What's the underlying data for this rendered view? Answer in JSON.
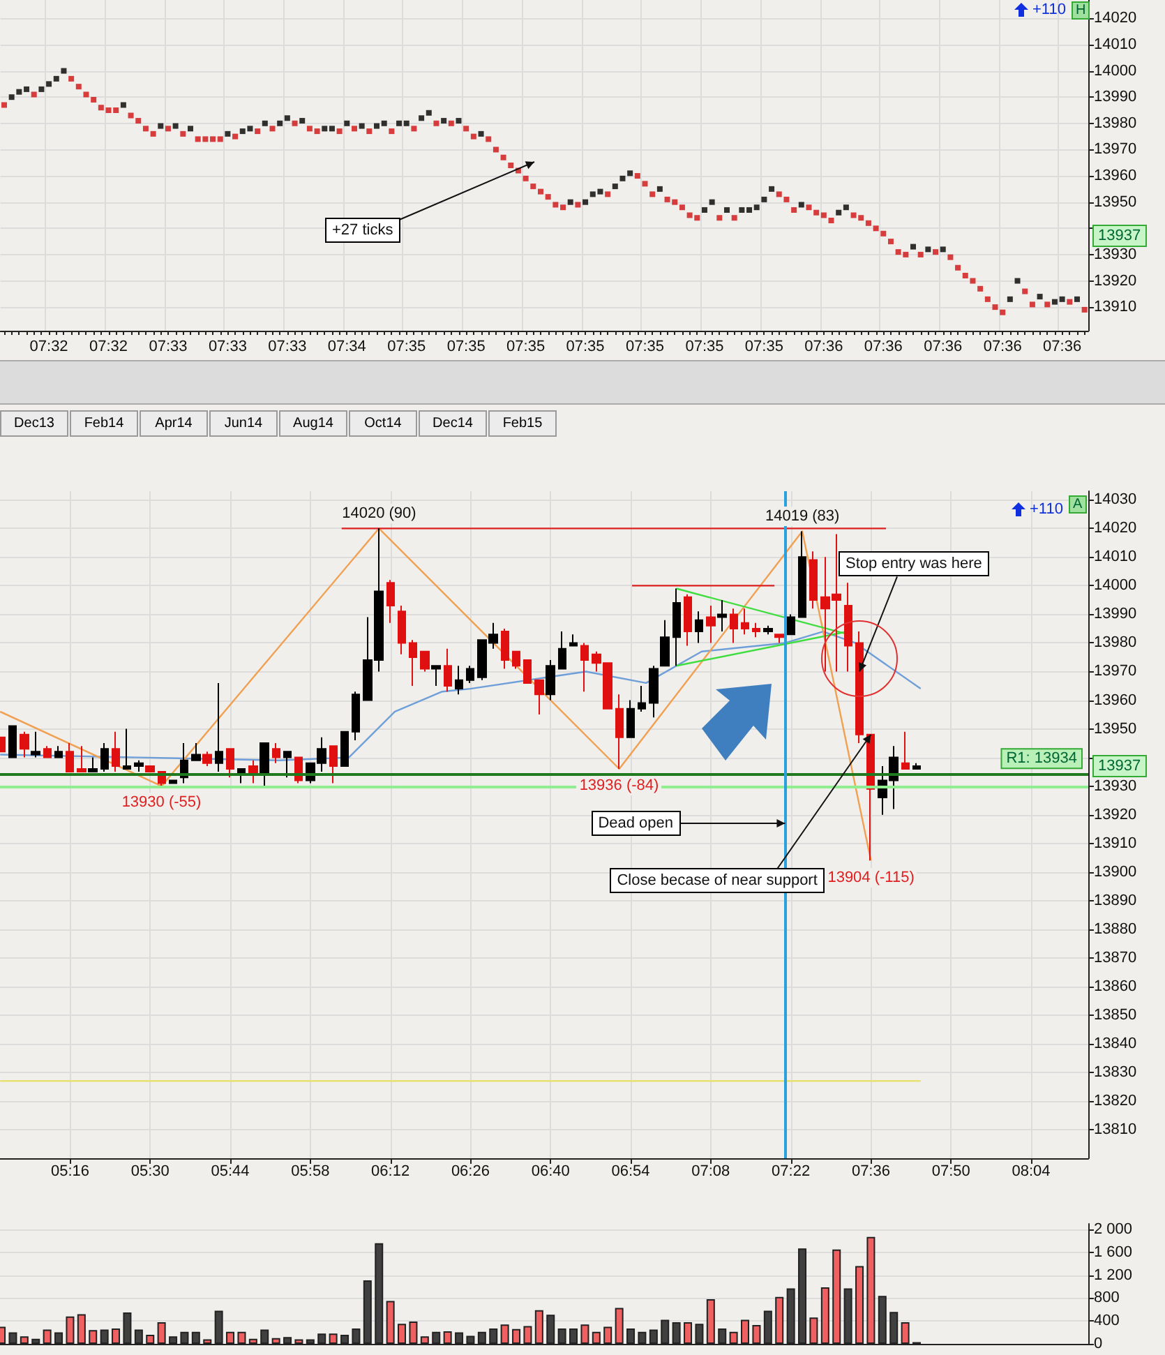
{
  "chart_data": [
    {
      "type": "scatter",
      "marker": "square",
      "grid": true,
      "categories": [
        null,
        null,
        null,
        null,
        null,
        null,
        "07:32",
        null,
        null,
        null,
        null,
        null,
        null,
        null,
        "07:32",
        null,
        null,
        null,
        null,
        null,
        null,
        null,
        "07:33",
        null,
        null,
        null,
        null,
        null,
        null,
        null,
        "07:33",
        null,
        null,
        null,
        null,
        null,
        null,
        null,
        "07:33",
        null,
        null,
        null,
        null,
        null,
        null,
        null,
        "07:34",
        null,
        null,
        null,
        null,
        null,
        null,
        null,
        "07:35",
        null,
        null,
        null,
        null,
        null,
        null,
        null,
        "07:35",
        null,
        null,
        null,
        null,
        null,
        null,
        null,
        "07:35",
        null,
        null,
        null,
        null,
        null,
        null,
        null,
        "07:35",
        null,
        null,
        null,
        null,
        null,
        null,
        null,
        "07:35",
        null,
        null,
        null,
        null,
        null,
        null,
        null,
        "07:35",
        null,
        null,
        null,
        null,
        null,
        null,
        null,
        "07:35",
        null,
        null,
        null,
        null,
        null,
        null,
        null,
        "07:36",
        null,
        null,
        null,
        null,
        null,
        null,
        null,
        "07:36",
        null,
        null,
        null,
        null,
        null,
        null,
        null,
        "07:36",
        null,
        null,
        null,
        null,
        null,
        null,
        null,
        "07:36",
        null,
        null,
        null,
        null,
        null,
        null,
        null,
        "07:36",
        null,
        null,
        null
      ],
      "values": [
        13987,
        13990,
        13992,
        13993,
        13991,
        13993,
        13995,
        13997,
        14000,
        13997,
        13994,
        13991,
        13989,
        13986,
        13985,
        13985,
        13987,
        13983,
        13981,
        13978,
        13976,
        13979,
        13978,
        13979,
        13976,
        13978,
        13974,
        13974,
        13974,
        13974,
        13976,
        13975,
        13977,
        13978,
        13977,
        13980,
        13978,
        13980,
        13982,
        13980,
        13981,
        13978,
        13977,
        13978,
        13978,
        13977,
        13980,
        13978,
        13979,
        13977,
        13979,
        13980,
        13977,
        13980,
        13980,
        13978,
        13982,
        13984,
        13980,
        13981,
        13980,
        13981,
        13978,
        13975,
        13976,
        13974,
        13970,
        13967,
        13964,
        13962,
        13959,
        13956,
        13954,
        13952,
        13949,
        13948,
        13950,
        13949,
        13950,
        13953,
        13954,
        13953,
        13956,
        13959,
        13961,
        13960,
        13957,
        13953,
        13955,
        13951,
        13950,
        13948,
        13945,
        13944,
        13947,
        13950,
        13944,
        13947,
        13944,
        13947,
        13947,
        13948,
        13951,
        13955,
        13953,
        13951,
        13947,
        13949,
        13948,
        13946,
        13945,
        13943,
        13946,
        13948,
        13945,
        13944,
        13942,
        13940,
        13938,
        13935,
        13931,
        13930,
        13933,
        13930,
        13932,
        13931,
        13932,
        13929,
        13925,
        13922,
        13920,
        13917,
        13913,
        13910,
        13908,
        13913,
        13920,
        13916,
        13911,
        13914,
        13911,
        13912,
        13913,
        13912,
        13913,
        13909
      ],
      "colors": [
        "#d01010",
        "#000000",
        "#000000",
        "#000000",
        "#d01010",
        "#000000",
        "#000000",
        "#000000",
        "#000000",
        "#d01010",
        "#d01010",
        "#d01010",
        "#d01010",
        "#d01010",
        "#d01010",
        "#d01010",
        "#000000",
        "#d01010",
        "#d01010",
        "#d01010",
        "#d01010",
        "#000000",
        "#d01010",
        "#000000",
        "#d01010",
        "#000000",
        "#d01010",
        "#d01010",
        "#d01010",
        "#d01010",
        "#000000",
        "#d01010",
        "#000000",
        "#000000",
        "#d01010",
        "#000000",
        "#d01010",
        "#000000",
        "#000000",
        "#d01010",
        "#000000",
        "#d01010",
        "#d01010",
        "#000000",
        "#000000",
        "#d01010",
        "#000000",
        "#d01010",
        "#000000",
        "#d01010",
        "#000000",
        "#000000",
        "#d01010",
        "#000000",
        "#000000",
        "#d01010",
        "#000000",
        "#000000",
        "#d01010",
        "#000000",
        "#d01010",
        "#000000",
        "#d01010",
        "#d01010",
        "#000000",
        "#d01010",
        "#d01010",
        "#d01010",
        "#d01010",
        "#d01010",
        "#d01010",
        "#d01010",
        "#d01010",
        "#d01010",
        "#d01010",
        "#d01010",
        "#000000",
        "#d01010",
        "#000000",
        "#000000",
        "#000000",
        "#d01010",
        "#000000",
        "#000000",
        "#000000",
        "#d01010",
        "#d01010",
        "#d01010",
        "#000000",
        "#d01010",
        "#d01010",
        "#d01010",
        "#d01010",
        "#d01010",
        "#000000",
        "#000000",
        "#d01010",
        "#000000",
        "#d01010",
        "#000000",
        "#000000",
        "#000000",
        "#000000",
        "#000000",
        "#d01010",
        "#d01010",
        "#d01010",
        "#000000",
        "#d01010",
        "#d01010",
        "#d01010",
        "#d01010",
        "#000000",
        "#000000",
        "#d01010",
        "#d01010",
        "#d01010",
        "#d01010",
        "#d01010",
        "#d01010",
        "#d01010",
        "#d01010",
        "#000000",
        "#d01010",
        "#000000",
        "#d01010",
        "#000000",
        "#d01010",
        "#d01010",
        "#d01010",
        "#d01010",
        "#d01010",
        "#d01010",
        "#d01010",
        "#d01010",
        "#000000",
        "#000000",
        "#d01010",
        "#d01010",
        "#000000",
        "#d01010",
        "#000000",
        "#000000",
        "#d01010",
        "#000000",
        "#d01010"
      ],
      "ylim": [
        13901,
        14027
      ],
      "yticks": [
        13910,
        13920,
        13930,
        {
          "value": 13940,
          "label": null
        },
        13950,
        13960,
        13970,
        13980,
        13990,
        14000,
        14010,
        14020
      ],
      "annotations": [
        "+27 ticks",
        "+110",
        "H",
        {
          "text": "13937",
          "y": 13937
        }
      ]
    },
    {
      "type": "candlestick",
      "grid": true,
      "x": [
        5.0667,
        5.1,
        5.1333,
        5.1667,
        5.2,
        5.2333,
        5.2667,
        5.3,
        5.3333,
        5.3667,
        5.4,
        5.4333,
        5.4667,
        5.5,
        5.5333,
        5.5667,
        5.6,
        5.6333,
        5.6667,
        5.7,
        5.7333,
        5.7667,
        5.8,
        5.8333,
        5.8667,
        5.9,
        5.9333,
        5.9667,
        6,
        6.0333,
        6.0667,
        6.1,
        6.1333,
        6.1667,
        6.2,
        6.2333,
        6.2667,
        6.3,
        6.3333,
        6.3667,
        6.4,
        6.4333,
        6.4667,
        6.5,
        6.5333,
        6.5667,
        6.6,
        6.6333,
        6.6667,
        6.7,
        6.7333,
        6.7667,
        6.8,
        6.8333,
        6.8667,
        6.9,
        6.9333,
        6.9667,
        7,
        7.0333,
        7.0667,
        7.1,
        7.1333,
        7.1667,
        7.2,
        7.2333,
        7.2667,
        7.3,
        7.3333,
        7.3667,
        7.4,
        7.4333,
        7.4667,
        7.5,
        7.5333,
        7.5667,
        7.6,
        7.6333,
        7.6667,
        7.7,
        7.7333
      ],
      "ohlc": [
        [
          13947,
          13947,
          13942,
          13942
        ],
        [
          13940,
          13951,
          13940,
          13951
        ],
        [
          13948,
          13949,
          13940,
          13943
        ],
        [
          13941,
          13949,
          13940,
          13942
        ],
        [
          13943,
          13944,
          13940,
          13940
        ],
        [
          13940,
          13944,
          13940,
          13942
        ],
        [
          13942,
          13945,
          13935,
          13935
        ],
        [
          13936,
          13944,
          13935,
          13935
        ],
        [
          13935,
          13940,
          13935,
          13936
        ],
        [
          13936,
          13945,
          13935,
          13943
        ],
        [
          13943,
          13949,
          13935,
          13937
        ],
        [
          13936,
          13950,
          13936,
          13937
        ],
        [
          13937,
          13939,
          13935,
          13938
        ],
        [
          13937,
          13937,
          13935,
          13935
        ],
        [
          13935,
          13935,
          13930,
          13931
        ],
        [
          13931,
          13932,
          13931,
          13932
        ],
        [
          13933,
          13945,
          13931,
          13939
        ],
        [
          13939,
          13945,
          13939,
          13941
        ],
        [
          13941,
          13942,
          13937,
          13938
        ],
        [
          13938,
          13966,
          13935,
          13942
        ],
        [
          13943,
          13943,
          13933,
          13936
        ],
        [
          13934,
          13936,
          13931,
          13936
        ],
        [
          13937,
          13939,
          13931,
          13934
        ],
        [
          13934,
          13945,
          13930,
          13945
        ],
        [
          13943,
          13945,
          13938,
          13940
        ],
        [
          13940,
          13942,
          13933,
          13942
        ],
        [
          13940,
          13940,
          13931,
          13932
        ],
        [
          13932,
          13938,
          13931,
          13938
        ],
        [
          13938,
          13947,
          13935,
          13943
        ],
        [
          13944,
          13944,
          13931,
          13937
        ],
        [
          13937,
          13949,
          13937,
          13949
        ],
        [
          13949,
          13963,
          13946,
          13962
        ],
        [
          13960,
          13989,
          13960,
          13974
        ],
        [
          13974,
          14020,
          13970,
          13998
        ],
        [
          14001,
          14002,
          13987,
          13993
        ],
        [
          13991,
          13993,
          13976,
          13980
        ],
        [
          13980,
          13981,
          13965,
          13975
        ],
        [
          13977,
          13977,
          13970,
          13971
        ],
        [
          13971,
          13972,
          13965,
          13972
        ],
        [
          13972,
          13978,
          13963,
          13965
        ],
        [
          13964,
          13972,
          13962,
          13967
        ],
        [
          13967,
          13972,
          13966,
          13971
        ],
        [
          13968,
          13981,
          13967,
          13981
        ],
        [
          13980,
          13987,
          13978,
          13983
        ],
        [
          13984,
          13985,
          13971,
          13974
        ],
        [
          13977,
          13977,
          13971,
          13972
        ],
        [
          13974,
          13974,
          13966,
          13966
        ],
        [
          13967,
          13967,
          13955,
          13962
        ],
        [
          13962,
          13974,
          13960,
          13972
        ],
        [
          13971,
          13984,
          13971,
          13978
        ],
        [
          13979,
          13983,
          13979,
          13980
        ],
        [
          13979,
          13980,
          13963,
          13974
        ],
        [
          13976,
          13977,
          13970,
          13973
        ],
        [
          13973,
          13973,
          13957,
          13957
        ],
        [
          13957,
          13962,
          13936,
          13947
        ],
        [
          13947,
          13960,
          13947,
          13957
        ],
        [
          13957,
          13965,
          13956,
          13959
        ],
        [
          13959,
          13972,
          13954,
          13971
        ],
        [
          13972,
          13988,
          13972,
          13982
        ],
        [
          13982,
          13999,
          13972,
          13994
        ],
        [
          13996,
          13997,
          13979,
          13984
        ],
        [
          13984,
          13991,
          13980,
          13988
        ],
        [
          13989,
          13993,
          13980,
          13986
        ],
        [
          13989,
          13995,
          13984,
          13990
        ],
        [
          13990,
          13992,
          13980,
          13985
        ],
        [
          13987,
          13992,
          13983,
          13985
        ],
        [
          13985,
          13987,
          13982,
          13984
        ],
        [
          13984,
          13986,
          13983,
          13985
        ],
        [
          13983,
          13983,
          13980,
          13982
        ],
        [
          13983,
          13990,
          13983,
          13989
        ],
        [
          13989,
          14019,
          13989,
          14010
        ],
        [
          14009,
          14012,
          13992,
          13995
        ],
        [
          13996,
          14010,
          13970,
          13992
        ],
        [
          13997,
          14018,
          13970,
          13995
        ],
        [
          13993,
          14001,
          13970,
          13979
        ],
        [
          13980,
          13984,
          13945,
          13948
        ],
        [
          13948,
          13948,
          13904,
          13929
        ],
        [
          13926,
          13937,
          13920,
          13932
        ],
        [
          13932,
          13944,
          13922,
          13940
        ],
        [
          13938,
          13949,
          13936,
          13936
        ],
        [
          13936,
          13938,
          13936,
          13937
        ]
      ],
      "colors": [
        "#e01010",
        "#000000",
        "#e01010",
        "#000000",
        "#e01010",
        "#000000",
        "#e01010",
        "#e01010",
        "#000000",
        "#000000",
        "#e01010",
        "#000000",
        "#000000",
        "#e01010",
        "#e01010",
        "#000000",
        "#000000",
        "#000000",
        "#e01010",
        "#000000",
        "#e01010",
        "#000000",
        "#e01010",
        "#000000",
        "#e01010",
        "#000000",
        "#e01010",
        "#000000",
        "#000000",
        "#e01010",
        "#000000",
        "#000000",
        "#000000",
        "#000000",
        "#e01010",
        "#e01010",
        "#e01010",
        "#e01010",
        "#000000",
        "#e01010",
        "#000000",
        "#000000",
        "#000000",
        "#000000",
        "#e01010",
        "#e01010",
        "#e01010",
        "#e01010",
        "#000000",
        "#000000",
        "#000000",
        "#e01010",
        "#e01010",
        "#e01010",
        "#e01010",
        "#000000",
        "#000000",
        "#000000",
        "#000000",
        "#000000",
        "#e01010",
        "#000000",
        "#e01010",
        "#000000",
        "#e01010",
        "#e01010",
        "#e01010",
        "#000000",
        "#e01010",
        "#000000",
        "#000000",
        "#e01010",
        "#e01010",
        "#e01010",
        "#e01010",
        "#e01010",
        "#e01010",
        "#000000",
        "#000000",
        "#e01010",
        "#000000"
      ],
      "series": [
        {
          "type": "line",
          "color": "#6f9fd8",
          "x": [
            5.063,
            5.469,
            5.876,
            6.079,
            6.213,
            6.351,
            6.433,
            6.77,
            6.945,
            7.107,
            7.351,
            7.461,
            7.554,
            7.745
          ],
          "values": [
            13941,
            13940,
            13939,
            13940,
            13956,
            13963,
            13964,
            13970,
            13966,
            13977,
            13980,
            13984,
            13980,
            13964
          ]
        },
        {
          "type": "line",
          "color": "#f0a050",
          "x": [
            5.063,
            5.5333,
            6.1667,
            6.8667,
            7.4,
            7.6
          ],
          "values": [
            13956,
            13930,
            14020,
            13936,
            14019,
            13904
          ]
        },
        {
          "type": "line",
          "color": "#40dd40",
          "x": [
            7.0333,
            7.5333
          ],
          "values": [
            13999,
            13983
          ]
        },
        {
          "type": "line",
          "color": "#40dd40",
          "x": [
            7.0333,
            7.5333
          ],
          "values": [
            13972,
            13984
          ]
        },
        {
          "type": "line",
          "color": "#dd2020",
          "x": [
            6.058,
            7.644
          ],
          "values": [
            14020,
            14020
          ]
        },
        {
          "type": "line",
          "color": "#dd2020",
          "x": [
            6.904,
            7.319
          ],
          "values": [
            14000,
            14000
          ]
        },
        {
          "type": "line",
          "color": "#e8e070",
          "x": [
            5.063,
            7.745
          ],
          "values": [
            13827,
            13827
          ]
        }
      ],
      "ref_lines": [
        {
          "axis": "y",
          "value": 13934,
          "label": "R1: 13934",
          "color": "#1f7a1f"
        },
        {
          "axis": "y",
          "value": 13930,
          "color": "#90ee90"
        },
        {
          "axis": "x",
          "value": 7.35,
          "color": "#2aa0dc"
        }
      ],
      "xlim": [
        5.0625,
        8.2333
      ],
      "xticks": [
        {
          "value": 5.2667,
          "label": "05:16"
        },
        {
          "value": 5.5,
          "label": "05:30"
        },
        {
          "value": 5.7333,
          "label": "05:44"
        },
        {
          "value": 5.9667,
          "label": "05:58"
        },
        {
          "value": 6.2,
          "label": "06:12"
        },
        {
          "value": 6.4333,
          "label": "06:26"
        },
        {
          "value": 6.6667,
          "label": "06:40"
        },
        {
          "value": 6.9,
          "label": "06:54"
        },
        {
          "value": 7.1333,
          "label": "07:08"
        },
        {
          "value": 7.3667,
          "label": "07:22"
        },
        {
          "value": 7.6,
          "label": "07:36"
        },
        {
          "value": 7.8333,
          "label": "07:50"
        },
        {
          "value": 8.0667,
          "label": "08:04"
        }
      ],
      "ylim": [
        13800,
        14033
      ],
      "yticks": [
        13810,
        13820,
        13830,
        13840,
        13850,
        13860,
        13870,
        13880,
        13890,
        13900,
        13910,
        13920,
        13930,
        {
          "value": 13940,
          "label": null
        },
        13950,
        13960,
        13970,
        13980,
        13990,
        14000,
        14010,
        14020,
        14030
      ],
      "annotations": [
        {
          "text": "14020 (90)",
          "x": 6.1667,
          "y": 14020
        },
        {
          "text": "14019 (83)",
          "x": 7.4,
          "y": 14019
        },
        {
          "text": "13930 (-55)",
          "x": 5.5333,
          "y": 13930
        },
        {
          "text": "13936 (-84)",
          "x": 6.8667,
          "y": 13936
        },
        {
          "text": "13904 (-115)",
          "x": 7.6,
          "y": 13904
        },
        {
          "text": "Stop entry was here",
          "x": 7.5667,
          "y": 13970
        },
        {
          "text": "Dead open",
          "x": 7.35,
          "y": 13917
        },
        {
          "text": "Close becase of near support",
          "x": 7.6,
          "y": 13948
        },
        "+110",
        "A",
        {
          "text": "13937",
          "y": 13937
        },
        "Dec13",
        "Feb14",
        "Apr14",
        "Jun14",
        "Aug14",
        "Oct14",
        "Dec14",
        "Feb15"
      ]
    },
    {
      "type": "bar",
      "grid": "y",
      "tick_labels": "y",
      "x": [
        5.0667,
        5.1,
        5.1333,
        5.1667,
        5.2,
        5.2333,
        5.2667,
        5.3,
        5.3333,
        5.3667,
        5.4,
        5.4333,
        5.4667,
        5.5,
        5.5333,
        5.5667,
        5.6,
        5.6333,
        5.6667,
        5.7,
        5.7333,
        5.7667,
        5.8,
        5.8333,
        5.8667,
        5.9,
        5.9333,
        5.9667,
        6,
        6.0333,
        6.0667,
        6.1,
        6.1333,
        6.1667,
        6.2,
        6.2333,
        6.2667,
        6.3,
        6.3333,
        6.3667,
        6.4,
        6.4333,
        6.4667,
        6.5,
        6.5333,
        6.5667,
        6.6,
        6.6333,
        6.6667,
        6.7,
        6.7333,
        6.7667,
        6.8,
        6.8333,
        6.8667,
        6.9,
        6.9333,
        6.9667,
        7,
        7.0333,
        7.0667,
        7.1,
        7.1333,
        7.1667,
        7.2,
        7.2333,
        7.2667,
        7.3,
        7.3333,
        7.3667,
        7.4,
        7.4333,
        7.4667,
        7.5,
        7.5333,
        7.5667,
        7.6,
        7.6333,
        7.6667,
        7.7,
        7.7333
      ],
      "values": [
        300,
        200,
        130,
        90,
        250,
        200,
        480,
        520,
        240,
        250,
        270,
        550,
        250,
        160,
        380,
        130,
        210,
        210,
        80,
        580,
        210,
        210,
        90,
        250,
        100,
        120,
        80,
        80,
        180,
        180,
        160,
        270,
        1110,
        1760,
        750,
        350,
        390,
        130,
        210,
        220,
        200,
        140,
        210,
        270,
        340,
        260,
        310,
        590,
        510,
        270,
        270,
        340,
        210,
        300,
        630,
        270,
        210,
        250,
        420,
        380,
        380,
        350,
        780,
        270,
        210,
        420,
        330,
        580,
        820,
        970,
        1670,
        460,
        990,
        1650,
        970,
        1360,
        1870,
        840,
        560,
        380,
        30
      ],
      "colors": [
        "#f06060",
        "#404040",
        "#f06060",
        "#404040",
        "#f06060",
        "#404040",
        "#f06060",
        "#f06060",
        "#f06060",
        "#404040",
        "#f06060",
        "#404040",
        "#404040",
        "#f06060",
        "#f06060",
        "#404040",
        "#404040",
        "#404040",
        "#f06060",
        "#404040",
        "#f06060",
        "#f06060",
        "#f06060",
        "#404040",
        "#f06060",
        "#404040",
        "#f06060",
        "#404040",
        "#404040",
        "#f06060",
        "#404040",
        "#404040",
        "#404040",
        "#404040",
        "#f06060",
        "#f06060",
        "#f06060",
        "#f06060",
        "#404040",
        "#f06060",
        "#404040",
        "#404040",
        "#404040",
        "#404040",
        "#f06060",
        "#f06060",
        "#f06060",
        "#f06060",
        "#404040",
        "#404040",
        "#404040",
        "#f06060",
        "#f06060",
        "#f06060",
        "#f06060",
        "#404040",
        "#404040",
        "#404040",
        "#404040",
        "#404040",
        "#f06060",
        "#404040",
        "#f06060",
        "#404040",
        "#f06060",
        "#f06060",
        "#f06060",
        "#404040",
        "#f06060",
        "#404040",
        "#404040",
        "#f06060",
        "#f06060",
        "#f06060",
        "#404040",
        "#f06060",
        "#f06060",
        "#404040",
        "#404040",
        "#f06060",
        "#404040"
      ],
      "xlim": [
        5.0625,
        8.2333
      ],
      "ylim": [
        0,
        2100
      ],
      "yticks": [
        {
          "value": 0,
          "label": "0"
        },
        {
          "value": 400,
          "label": "400"
        },
        {
          "value": 800,
          "label": "800"
        },
        {
          "value": 1200,
          "label": "1 200"
        },
        {
          "value": 1600,
          "label": "1 600"
        },
        {
          "value": 2000,
          "label": "2 000"
        }
      ]
    }
  ]
}
